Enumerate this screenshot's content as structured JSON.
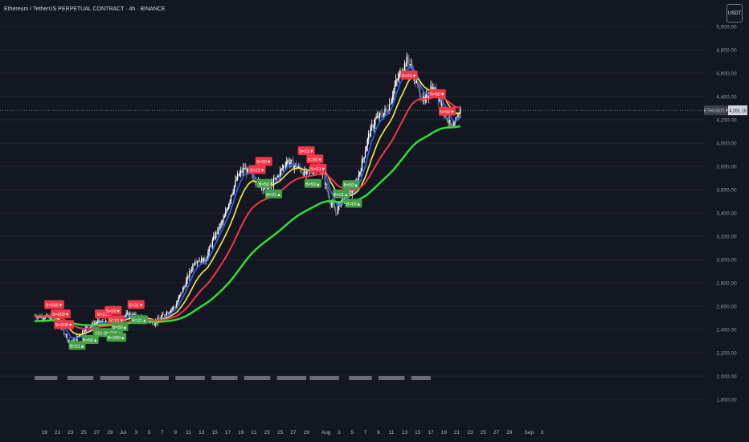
{
  "header": {
    "title": "Ethereum / TetherUS PERPETUAL CONTRACT · 4h · BINANCE",
    "currency_button": "USDT"
  },
  "price_tag": {
    "symbol": "ETHUSDT.P",
    "value": "4,281.18",
    "price": 4281.18
  },
  "colors": {
    "background": "#131722",
    "grid": "#232632",
    "candle_up": "#ffffff",
    "candle_down": "#7b7f88",
    "ema_fast": "#2962ff",
    "ema_mid": "#ffeb3b",
    "ema_slow": "#f23645",
    "ema_trend": "#2ee62e",
    "sell_label": "#f23645",
    "buy_label": "#43a047",
    "session_bar": "#6a6d78"
  },
  "chart_data": {
    "type": "candlestick",
    "symbol": "ETHUSDT.P",
    "timeframe": "4h",
    "exchange": "BINANCE",
    "ylim": [
      1750,
      5050
    ],
    "y_ticks": [
      "1,800.00",
      "2,000.00",
      "2,200.00",
      "2,400.00",
      "2,600.00",
      "2,800.00",
      "3,000.00",
      "3,200.00",
      "3,400.00",
      "3,600.00",
      "3,800.00",
      "4,000.00",
      "4,200.00",
      "4,400.00",
      "4,600.00",
      "4,800.00",
      "5,000.00"
    ],
    "y_tick_values": [
      1800,
      2000,
      2200,
      2400,
      2600,
      2800,
      3000,
      3200,
      3400,
      3600,
      3800,
      4000,
      4200,
      4400,
      4600,
      4800,
      5000
    ],
    "x_ticks": [
      "19",
      "21",
      "23",
      "25",
      "27",
      "29",
      "Jul",
      "3",
      "5",
      "7",
      "9",
      "11",
      "13",
      "15",
      "17",
      "19",
      "21",
      "23",
      "25",
      "27",
      "29",
      "Aug",
      "3",
      "5",
      "7",
      "9",
      "11",
      "13",
      "15",
      "17",
      "19",
      "21",
      "23",
      "25",
      "27",
      "29",
      "Sep",
      "3"
    ],
    "x_tick_days": [
      -12,
      -10,
      -8,
      -6,
      -4,
      -2,
      0,
      2,
      4,
      6,
      8,
      10,
      12,
      14,
      16,
      18,
      20,
      22,
      24,
      26,
      28,
      31,
      33,
      35,
      37,
      39,
      41,
      43,
      45,
      47,
      49,
      51,
      53,
      55,
      57,
      59,
      62,
      64
    ],
    "grid": true,
    "price_anchors": [
      [
        -13.5,
        2520
      ],
      [
        -11,
        2500
      ],
      [
        -9.5,
        2430
      ],
      [
        -8,
        2280
      ],
      [
        -7,
        2330
      ],
      [
        -6,
        2400
      ],
      [
        -4,
        2460
      ],
      [
        -2,
        2450
      ],
      [
        -0.5,
        2500
      ],
      [
        1,
        2530
      ],
      [
        3,
        2490
      ],
      [
        5,
        2460
      ],
      [
        6.5,
        2540
      ],
      [
        8,
        2600
      ],
      [
        9.5,
        2790
      ],
      [
        11,
        3000
      ],
      [
        12.5,
        2990
      ],
      [
        14,
        3200
      ],
      [
        15.5,
        3360
      ],
      [
        16.5,
        3560
      ],
      [
        17.5,
        3710
      ],
      [
        18.5,
        3780
      ],
      [
        19.5,
        3720
      ],
      [
        21,
        3640
      ],
      [
        22,
        3600
      ],
      [
        23.5,
        3700
      ],
      [
        25,
        3850
      ],
      [
        26.5,
        3800
      ],
      [
        28,
        3730
      ],
      [
        29.5,
        3800
      ],
      [
        30.5,
        3740
      ],
      [
        31.5,
        3520
      ],
      [
        32.5,
        3400
      ],
      [
        33.5,
        3530
      ],
      [
        34.5,
        3560
      ],
      [
        35.5,
        3620
      ],
      [
        36.5,
        3830
      ],
      [
        37.5,
        4060
      ],
      [
        38.5,
        4200
      ],
      [
        39.5,
        4240
      ],
      [
        40.5,
        4300
      ],
      [
        41.5,
        4490
      ],
      [
        42.5,
        4620
      ],
      [
        43.5,
        4720
      ],
      [
        44,
        4650
      ],
      [
        45,
        4480
      ],
      [
        46,
        4340
      ],
      [
        47,
        4480
      ],
      [
        48,
        4420
      ],
      [
        49,
        4280
      ],
      [
        50,
        4140
      ],
      [
        50.5,
        4120
      ],
      [
        51,
        4240
      ],
      [
        51.5,
        4281
      ]
    ],
    "series": [
      {
        "name": "EMA fast",
        "color": "#2962ff"
      },
      {
        "name": "EMA mid",
        "color": "#ffeb3b"
      },
      {
        "name": "EMA slow",
        "color": "#f23645"
      },
      {
        "name": "EMA trend",
        "color": "#2ee62e"
      }
    ],
    "signals": [
      {
        "side": "sell",
        "text": "S=500▼",
        "day": -10.5,
        "price": 2610
      },
      {
        "side": "sell",
        "text": "S=200▼",
        "day": -9.5,
        "price": 2530
      },
      {
        "side": "sell",
        "text": "S=200▼",
        "day": -9,
        "price": 2440
      },
      {
        "side": "buy",
        "text": "B=21▲",
        "day": -7,
        "price": 2260
      },
      {
        "side": "buy",
        "text": "B=50▲",
        "day": -5,
        "price": 2310
      },
      {
        "side": "sell",
        "text": "S=200",
        "day": -3,
        "price": 2530
      },
      {
        "side": "sell",
        "text": "S=50▼",
        "day": -1.5,
        "price": 2560
      },
      {
        "side": "sell",
        "text": "S=21▼",
        "day": -1,
        "price": 2480
      },
      {
        "side": "buy",
        "text": "21=1",
        "day": -3.5,
        "price": 2370
      },
      {
        "side": "buy",
        "text": "B=200▲",
        "day": -1.5,
        "price": 2370
      },
      {
        "side": "buy",
        "text": "B=50▲",
        "day": -0.5,
        "price": 2420
      },
      {
        "side": "buy",
        "text": "B=200▲",
        "day": -1,
        "price": 2330
      },
      {
        "side": "sell",
        "text": "S=21▼",
        "day": 2,
        "price": 2610
      },
      {
        "side": "buy",
        "text": "B=21▲",
        "day": 2.5,
        "price": 2480
      },
      {
        "side": "sell",
        "text": "S=21▼",
        "day": 20.5,
        "price": 3770
      },
      {
        "side": "sell",
        "text": "S=50▼",
        "day": 21.5,
        "price": 3840
      },
      {
        "side": "buy",
        "text": "B=50",
        "day": 21.5,
        "price": 3650
      },
      {
        "side": "buy",
        "text": "B=21▲",
        "day": 23,
        "price": 3560
      },
      {
        "side": "sell",
        "text": "S=21▼",
        "day": 28,
        "price": 3930
      },
      {
        "side": "sell",
        "text": "S=50▼",
        "day": 29.3,
        "price": 3860
      },
      {
        "side": "sell",
        "text": "S=21▼",
        "day": 29.8,
        "price": 3780
      },
      {
        "side": "buy",
        "text": "B=50▲",
        "day": 29,
        "price": 3650
      },
      {
        "side": "buy",
        "text": "B=21▲",
        "day": 33.3,
        "price": 3560
      },
      {
        "side": "buy",
        "text": "B=50▲",
        "day": 34.8,
        "price": 3640
      },
      {
        "side": "buy",
        "text": "B=50▲",
        "day": 35.2,
        "price": 3480
      },
      {
        "side": "sell",
        "text": "S=21▼",
        "day": 43.7,
        "price": 4580
      },
      {
        "side": "sell",
        "text": "S=50▼",
        "day": 48,
        "price": 4420
      },
      {
        "side": "sell",
        "text": "S=50▼",
        "day": 49.5,
        "price": 4270
      }
    ],
    "session_days": [
      [
        -13.5,
        -10
      ],
      [
        -8.5,
        -4.5
      ],
      [
        -3.5,
        1
      ],
      [
        2.5,
        7
      ],
      [
        8,
        12.5
      ],
      [
        13.5,
        17.5
      ],
      [
        18.5,
        22.5
      ],
      [
        23.5,
        28
      ],
      [
        28.5,
        33
      ],
      [
        34.5,
        38
      ],
      [
        39,
        43
      ],
      [
        44,
        47
      ]
    ]
  }
}
